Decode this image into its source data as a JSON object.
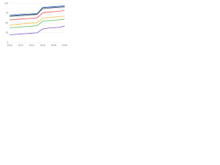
{
  "chart_data": {
    "type": "line",
    "x": [
      2010,
      2011,
      2012,
      2013,
      2014,
      2015,
      2016,
      2017,
      2018,
      2019,
      2020
    ],
    "series": [
      {
        "color": "#2f7ed8",
        "values": [
          70,
          71,
          72,
          72,
          73,
          74,
          90,
          91,
          92,
          93,
          95
        ]
      },
      {
        "color": "#1f2d4e",
        "values": [
          68,
          69,
          70,
          71,
          72,
          72,
          88,
          89,
          90,
          91,
          92
        ]
      },
      {
        "color": "#a6a6a6",
        "values": [
          66,
          67,
          68,
          69,
          70,
          71,
          86,
          87,
          88,
          89,
          90
        ]
      },
      {
        "color": "#e8413c",
        "values": [
          58,
          59,
          60,
          61,
          62,
          63,
          76,
          78,
          79,
          80,
          82
        ]
      },
      {
        "color": "#f2b632",
        "values": [
          45,
          46,
          47,
          49,
          50,
          51,
          62,
          64,
          65,
          66,
          68
        ]
      },
      {
        "color": "#5cb85c",
        "values": [
          38,
          39,
          40,
          41,
          42,
          43,
          55,
          56,
          57,
          58,
          60
        ]
      },
      {
        "color": "#7b4fc9",
        "values": [
          20,
          21,
          22,
          23,
          24,
          25,
          35,
          37,
          38,
          39,
          42
        ]
      }
    ],
    "xlim": [
      2010,
      2020
    ],
    "xticks": [
      2010,
      2012,
      2014,
      2016,
      2018,
      2020
    ],
    "ylim": [
      0,
      100
    ],
    "yticks": [
      0,
      25,
      50,
      75,
      100
    ],
    "grid": true
  }
}
